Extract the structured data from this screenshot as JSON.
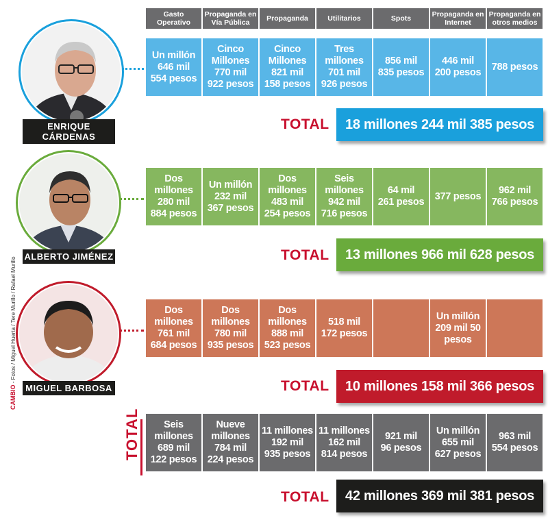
{
  "chart_data": {
    "type": "table",
    "columns": [
      "Gasto Operativo",
      "Propaganda en Vía Pública",
      "Propaganda",
      "Utilitarios",
      "Spots",
      "Propaganda en Internet",
      "Propaganda en otros medios"
    ],
    "candidates": [
      {
        "name": "ENRIQUE CÁRDENAS",
        "color": "#58b6e7",
        "cells": [
          "Un millón\n646 mil\n554 pesos",
          "Cinco\nMillones\n770 mil\n922 pesos",
          "Cinco\nMillones\n821 mil\n158 pesos",
          "Tres\nmillones\n701 mil\n926 pesos",
          "856 mil\n835 pesos",
          "446 mil\n200 pesos",
          "788 pesos"
        ],
        "total_label": "TOTAL",
        "total": "18 millones 244 mil 385 pesos",
        "total_color": "#1aa0dc"
      },
      {
        "name": "ALBERTO JIMÉNEZ",
        "color": "#86b75f",
        "cells": [
          "Dos\nmillones\n280 mil\n884 pesos",
          "Un millón\n232 mil\n367 pesos",
          "Dos\nmillones\n483 mil\n254 pesos",
          "Seis\nmillones\n942 mil\n716 pesos",
          "64 mil\n261 pesos",
          "377 pesos",
          "962 mil\n766 pesos"
        ],
        "total_label": "TOTAL",
        "total": "13 millones 966 mil 628 pesos",
        "total_color": "#6aab3c"
      },
      {
        "name": "MIGUEL BARBOSA",
        "color": "#cd7758",
        "cells": [
          "Dos\nmillones\n761 mil\n684 pesos",
          "Dos\nmillones\n780 mil\n935 pesos",
          "Dos\nmillones\n888 mil\n523 pesos",
          "518 mil\n172 pesos",
          "",
          "Un millón\n209 mil 50\npesos",
          ""
        ],
        "total_label": "TOTAL",
        "total": "10 millones 158 mil 366 pesos",
        "total_color": "#c01b2b"
      }
    ],
    "grand_total": {
      "side_label": "TOTAL",
      "color": "#6b6b6d",
      "cells": [
        "Seis\nmillones\n689 mil\n122 pesos",
        "Nueve\nmillones\n784 mil\n224 pesos",
        "11 millones\n192 mil\n935 pesos",
        "11 millones\n162 mil\n814 pesos",
        "921 mil\n96 pesos",
        "Un millón\n655 mil\n627 pesos",
        "963 mil\n554 pesos"
      ],
      "total_label": "TOTAL",
      "total": "42 millones 369 mil 381 pesos",
      "total_color": "#1d1d1b"
    }
  },
  "credit": {
    "brand": "CAMBIO",
    "text": " - Fotos / Miguel Huerta / Tere Murillo / Rafael Murillo"
  },
  "colors": {
    "accent_red": "#c8102e",
    "header_gray": "#6b6b6d",
    "plate_black": "#1d1d1b"
  }
}
